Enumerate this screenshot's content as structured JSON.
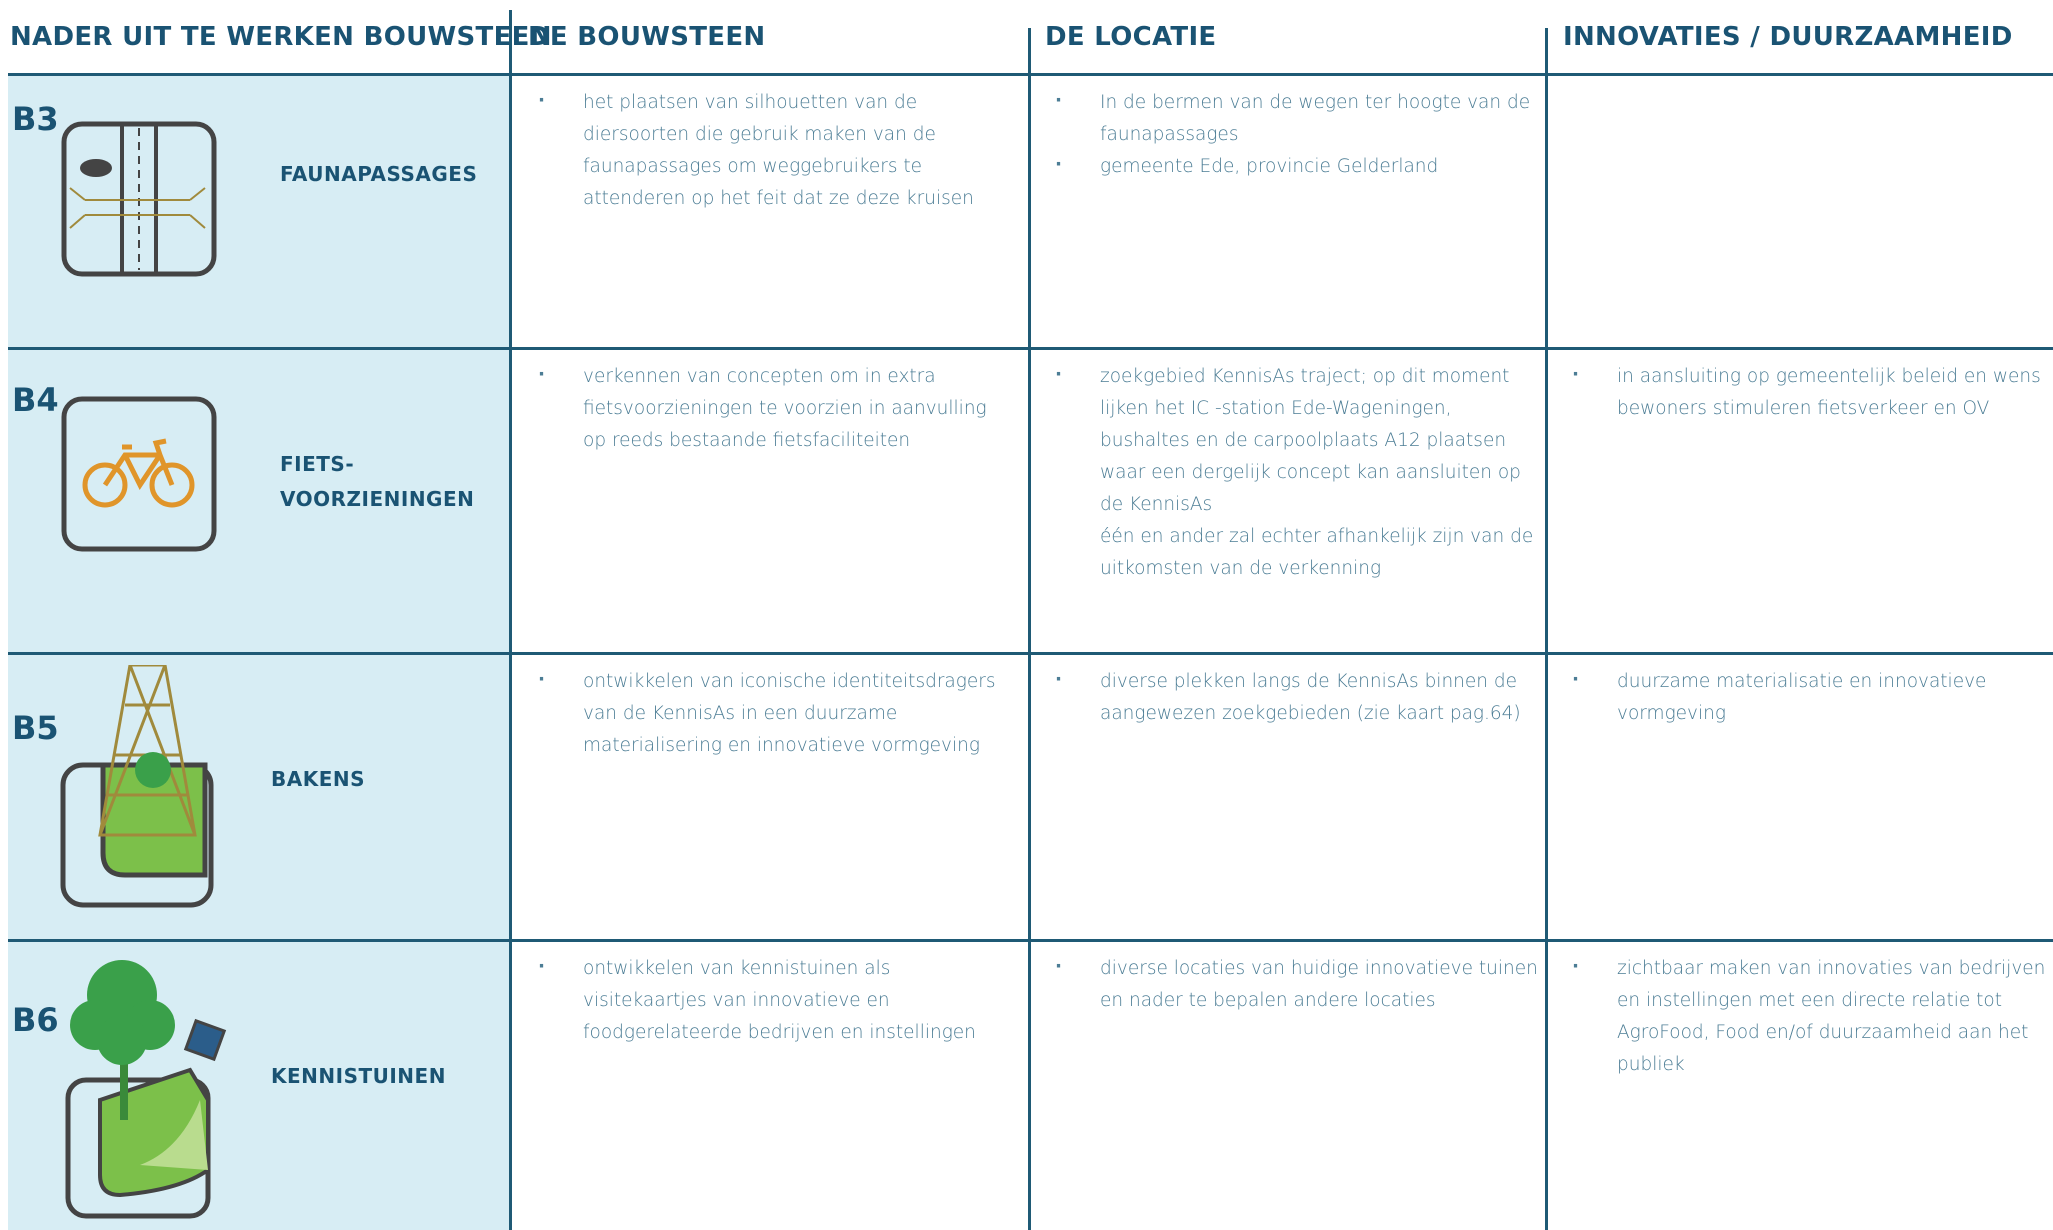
{
  "header": {
    "columns": [
      "NADER UIT TE WERKEN BOUWSTEEN",
      "DE BOUWSTEEN",
      "DE LOCATIE",
      "INNOVATIES / DUURZAAMHEID"
    ]
  },
  "rows": [
    {
      "code": "B3",
      "label": [
        "FAUNAPASSAGES"
      ],
      "bouwsteen": [
        [
          "het plaatsen van silhouetten van de diersoorten die gebruik maken van de faunapassages om weggebruikers te attenderen op het feit dat ze deze kruisen"
        ]
      ],
      "locatie": [
        [
          "In de bermen van de wegen ter hoogte van de faunapassages"
        ],
        [
          "gemeente Ede, provincie Gelderland"
        ]
      ],
      "innovaties": []
    },
    {
      "code": "B4",
      "label": [
        "FIETS-",
        "VOORZIENINGEN"
      ],
      "bouwsteen": [
        [
          "verkennen van concepten om in extra fietsvoorzieningen te voorzien in aanvulling op reeds bestaande fietsfaciliteiten"
        ]
      ],
      "locatie": [
        [
          "zoekgebied KennisAs traject; op dit moment lijken het IC -station Ede-Wageningen, bushaltes en de carpoolplaats A12 plaatsen waar een dergelijk concept kan aansluiten op de KennisAs",
          "één en ander zal echter afhankelijk zijn van de uitkomsten van de verkenning"
        ]
      ],
      "innovaties": [
        [
          "in aansluiting op gemeentelijk beleid en wens bewoners stimuleren fietsverkeer en OV"
        ]
      ]
    },
    {
      "code": "B5",
      "label": [
        "BAKENS"
      ],
      "bouwsteen": [
        [
          "ontwikkelen van iconische identiteitsdragers van de KennisAs in een duurzame materialisering en innovatieve vormgeving"
        ]
      ],
      "locatie": [
        [
          "diverse plekken langs de KennisAs binnen de aangewezen zoekgebieden (zie kaart pag.64)"
        ]
      ],
      "innovaties": [
        [
          "duurzame materialisatie en innovatieve vormgeving"
        ]
      ]
    },
    {
      "code": "B6",
      "label": [
        "KENNISTUINEN"
      ],
      "bouwsteen": [
        [
          "ontwikkelen van kennistuinen als visitekaartjes van innovatieve en foodgerelateerde bedrijven en instellingen"
        ]
      ],
      "locatie": [
        [
          "diverse locaties van huidige innovatieve tuinen en nader te bepalen andere locaties"
        ]
      ],
      "innovaties": [
        [
          "zichtbaar maken van innovaties van bedrijven en instellingen met een directe relatie tot AgroFood, Food en/of duurzaamheid aan het publiek"
        ]
      ]
    }
  ]
}
